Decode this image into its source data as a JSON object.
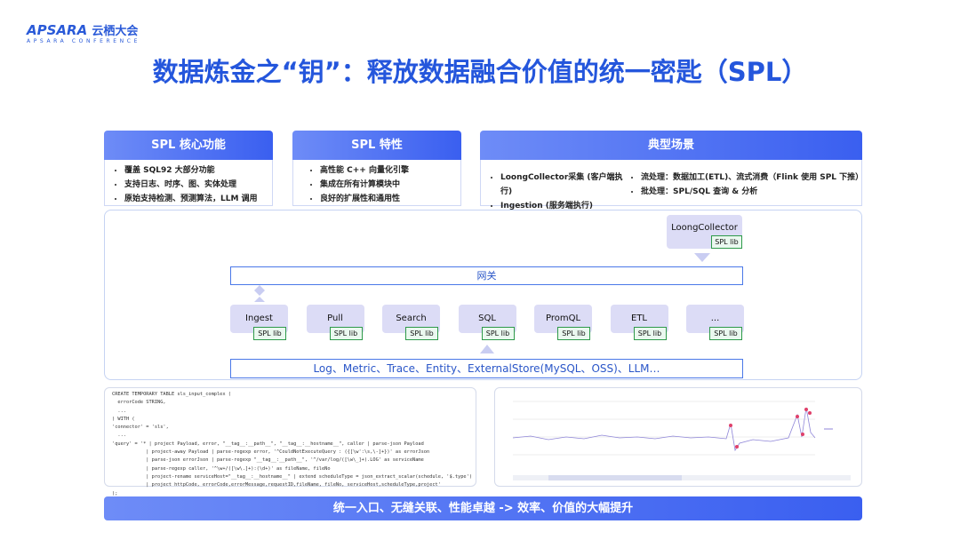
{
  "header": {
    "logo": "APSARA",
    "logo_cn": "云栖大会",
    "logo_sub": "APSARA CONFERENCE"
  },
  "title": "数据炼金之“钥”：释放数据融合价值的统一密匙（SPL）",
  "panels": [
    {
      "title": "SPL 核心功能",
      "items": [
        "覆盖 SQL92 大部分功能",
        "支持日志、时序、图、实体处理",
        "原始支持检测、预测算法，LLM 调用"
      ]
    },
    {
      "title": "SPL 特性",
      "items": [
        "高性能 C++ 向量化引擎",
        "集成在所有计算模块中",
        "良好的扩展性和通用性"
      ]
    }
  ],
  "scenario": {
    "title": "典型场景",
    "left": [
      "LoongCollector采集 (客户端执行)",
      "Ingestion (服务端执行)"
    ],
    "right": [
      "流处理：数据加工(ETL)、流式消费（Flink 使用 SPL 下推）",
      "批处理：SPL/SQL 查询 & 分析"
    ]
  },
  "architecture": {
    "collector": {
      "label": "LoongCollector",
      "lib": "SPL lib"
    },
    "gateway": "网关",
    "modules": [
      {
        "label": "Ingest",
        "lib": "SPL lib"
      },
      {
        "label": "Pull",
        "lib": "SPL lib"
      },
      {
        "label": "Search",
        "lib": "SPL lib"
      },
      {
        "label": "SQL",
        "lib": "SPL lib"
      },
      {
        "label": "PromQL",
        "lib": "SPL lib"
      },
      {
        "label": "ETL",
        "lib": "SPL lib"
      },
      {
        "label": "...",
        "lib": "SPL lib"
      }
    ],
    "sources": "Log、Metric、Trace、Entity、ExternalStore(MySQL、OSS)、LLM…"
  },
  "code": [
    "CREATE TEMPORARY TABLE sls_input_complex (",
    "  errorCode STRING,",
    "  ...",
    ") WITH (",
    "'connector' = 'sls',",
    "  ...",
    "'query' = '* | project Payload, error, \"__tag__:__path__\", \"__tag__:__hostname__\", caller | parse-json Payload",
    "            | project-away Payload | parse-regexp error, '^CouldNotExecuteQuery : ({[\\w':\\s,\\-]+})' as errorJson",
    "            | parse-json errorJson | parse-regexp \"__tag__:__path__\", '^/var/log/([\\w\\_]+).LOG' as serviceName",
    "            | parse-regexp caller, '^\\w+/([\\w\\.]+):(\\d+)' as fileName, fileNo",
    "            | project-rename serviceHost=\"__tag__:__hostname__\" | extend scheduleType = json_extract_scalar(schedule, '$.type')",
    "            | project httpCode, errorCode,errorMessage,requestID,fileName, fileNo, serviceHost,scheduleType,project'",
    ");"
  ],
  "footer": "统一入口、无缝关联、性能卓越 -> 效率、价值的大幅提升"
}
